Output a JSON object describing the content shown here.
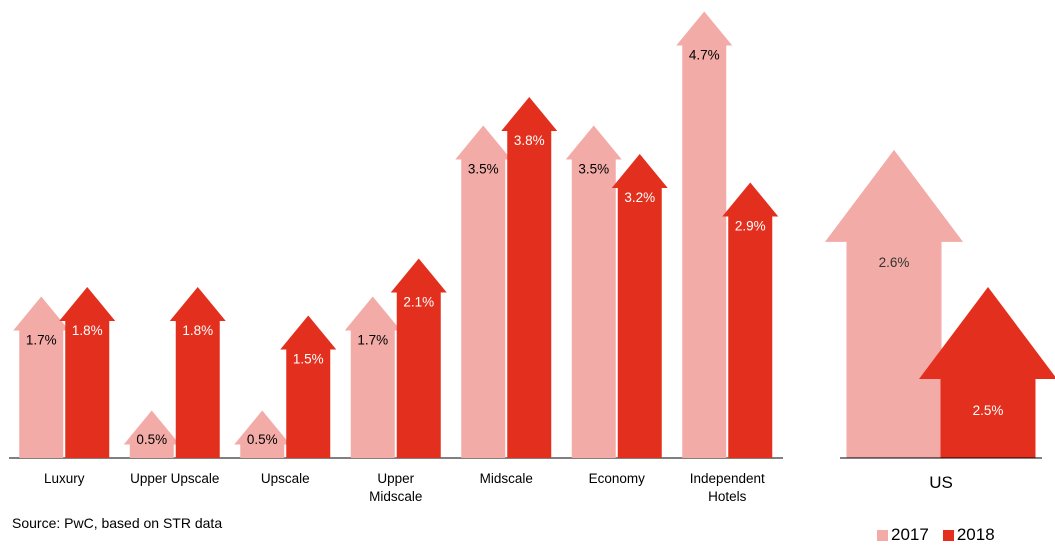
{
  "chart_data": [
    {
      "type": "bar",
      "categories": [
        "Luxury",
        "Upper Upscale",
        "Upscale",
        "Upper Midscale",
        "Midscale",
        "Economy",
        "Independent Hotels"
      ],
      "category_lines": [
        [
          "Luxury"
        ],
        [
          "Upper Upscale"
        ],
        [
          "Upscale"
        ],
        [
          "Upper",
          "Midscale"
        ],
        [
          "Midscale"
        ],
        [
          "Economy"
        ],
        [
          "Independent",
          "Hotels"
        ]
      ],
      "series": [
        {
          "name": "2017",
          "values": [
            1.7,
            0.5,
            0.5,
            1.7,
            3.5,
            3.5,
            4.7
          ],
          "labels": [
            "1.7%",
            "0.5%",
            "0.5%",
            "1.7%",
            "3.5%",
            "3.5%",
            "4.7%"
          ]
        },
        {
          "name": "2018",
          "values": [
            1.8,
            1.8,
            1.5,
            2.1,
            3.8,
            3.2,
            2.9
          ],
          "labels": [
            "1.8%",
            "1.8%",
            "1.5%",
            "2.1%",
            "3.8%",
            "3.2%",
            "2.9%"
          ]
        }
      ],
      "unit": "%",
      "marker": "arrow"
    },
    {
      "type": "bar",
      "categories": [
        "US"
      ],
      "series": [
        {
          "name": "2017",
          "values": [
            2.6
          ],
          "labels": [
            "2.6%"
          ]
        },
        {
          "name": "2018",
          "values": [
            2.5
          ],
          "labels": [
            "2.5%"
          ]
        }
      ],
      "unit": "%",
      "marker": "arrow"
    }
  ],
  "colors": {
    "2017": "#F2ABA6",
    "2018": "#E3301E"
  },
  "source": "Source: PwC, based on STR data",
  "legend": [
    {
      "name": "2017",
      "color": "#F2ABA6"
    },
    {
      "name": "2018",
      "color": "#E3301E"
    }
  ]
}
